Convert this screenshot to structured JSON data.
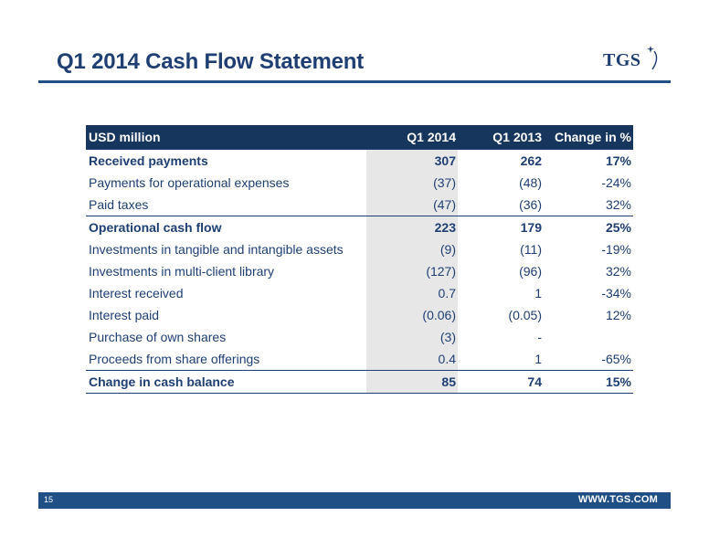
{
  "slide": {
    "title": "Q1 2014 Cash Flow Statement",
    "logo_text": "TGS",
    "page_number": "15",
    "footer_url": "WWW.TGS.COM"
  },
  "table": {
    "headers": [
      "USD million",
      "Q1 2014",
      "Q1 2013",
      "Change in %"
    ],
    "rows": [
      {
        "label": "Received payments",
        "q1_2014": "307",
        "q1_2013": "262",
        "change": "17%",
        "bold": true
      },
      {
        "label": "Payments for operational expenses",
        "q1_2014": "(37)",
        "q1_2013": "(48)",
        "change": "-24%",
        "bold": false
      },
      {
        "label": "Paid taxes",
        "q1_2014": "(47)",
        "q1_2013": "(36)",
        "change": "32%",
        "bold": false
      },
      {
        "label": "Operational cash flow",
        "q1_2014": "223",
        "q1_2013": "179",
        "change": "25%",
        "bold": true
      },
      {
        "label": "Investments in tangible and intangible assets",
        "q1_2014": "(9)",
        "q1_2013": "(11)",
        "change": "-19%",
        "bold": false
      },
      {
        "label": "Investments in multi-client library",
        "q1_2014": "(127)",
        "q1_2013": "(96)",
        "change": "32%",
        "bold": false
      },
      {
        "label": "Interest received",
        "q1_2014": "0.7",
        "q1_2013": "1",
        "change": "-34%",
        "bold": false
      },
      {
        "label": "Interest paid",
        "q1_2014": "(0.06)",
        "q1_2013": "(0.05)",
        "change": "12%",
        "bold": false
      },
      {
        "label": "Purchase of own shares",
        "q1_2014": "(3)",
        "q1_2013": "-",
        "change": "",
        "bold": false
      },
      {
        "label": "Proceeds from share offerings",
        "q1_2014": "0.4",
        "q1_2013": "1",
        "change": "-65%",
        "bold": false
      },
      {
        "label": "Change in cash balance",
        "q1_2014": "85",
        "q1_2013": "74",
        "change": "15%",
        "bold": true
      }
    ]
  },
  "colors": {
    "brand_navy": "#17365d",
    "title_blue": "#1f3f73",
    "footer_blue": "#1f4f85",
    "highlight_grey": "#e7e7e7"
  }
}
